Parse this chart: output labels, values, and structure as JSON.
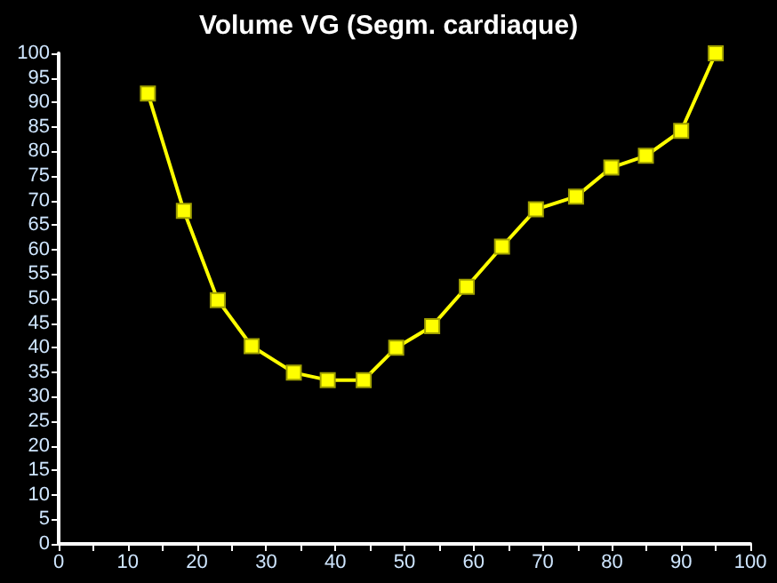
{
  "chart_data": {
    "type": "line",
    "title": "Volume VG (Segm. cardiaque)",
    "x": [
      12.9,
      18.1,
      23.0,
      27.9,
      34.0,
      38.9,
      44.1,
      48.8,
      54.0,
      59.0,
      64.1,
      69.0,
      74.8,
      79.9,
      84.9,
      90.0,
      95.0
    ],
    "series": [
      {
        "color": "#ffff00",
        "values": [
          91.8,
          67.9,
          49.7,
          40.3,
          34.9,
          33.4,
          33.4,
          40.0,
          44.4,
          52.4,
          60.6,
          68.2,
          70.8,
          76.7,
          79.1,
          84.2,
          100
        ]
      }
    ],
    "xlim": [
      0,
      100
    ],
    "xticks": [
      0,
      {
        "value": 5,
        "label": null
      },
      10,
      {
        "value": 15,
        "label": null
      },
      20,
      {
        "value": 25,
        "label": null
      },
      30,
      {
        "value": 35,
        "label": null
      },
      40,
      {
        "value": 45,
        "label": null
      },
      50,
      {
        "value": 55,
        "label": null
      },
      60,
      {
        "value": 65,
        "label": null
      },
      70,
      {
        "value": 75,
        "label": null
      },
      80,
      {
        "value": 85,
        "label": null
      },
      90,
      {
        "value": 95,
        "label": null
      },
      100
    ],
    "ylim": [
      0,
      100
    ],
    "yticks": [
      0,
      5,
      10,
      15,
      20,
      25,
      30,
      35,
      40,
      45,
      50,
      55,
      60,
      65,
      70,
      75,
      80,
      85,
      90,
      95,
      100
    ],
    "grid": false,
    "marker": "square",
    "line_style": "solid"
  }
}
